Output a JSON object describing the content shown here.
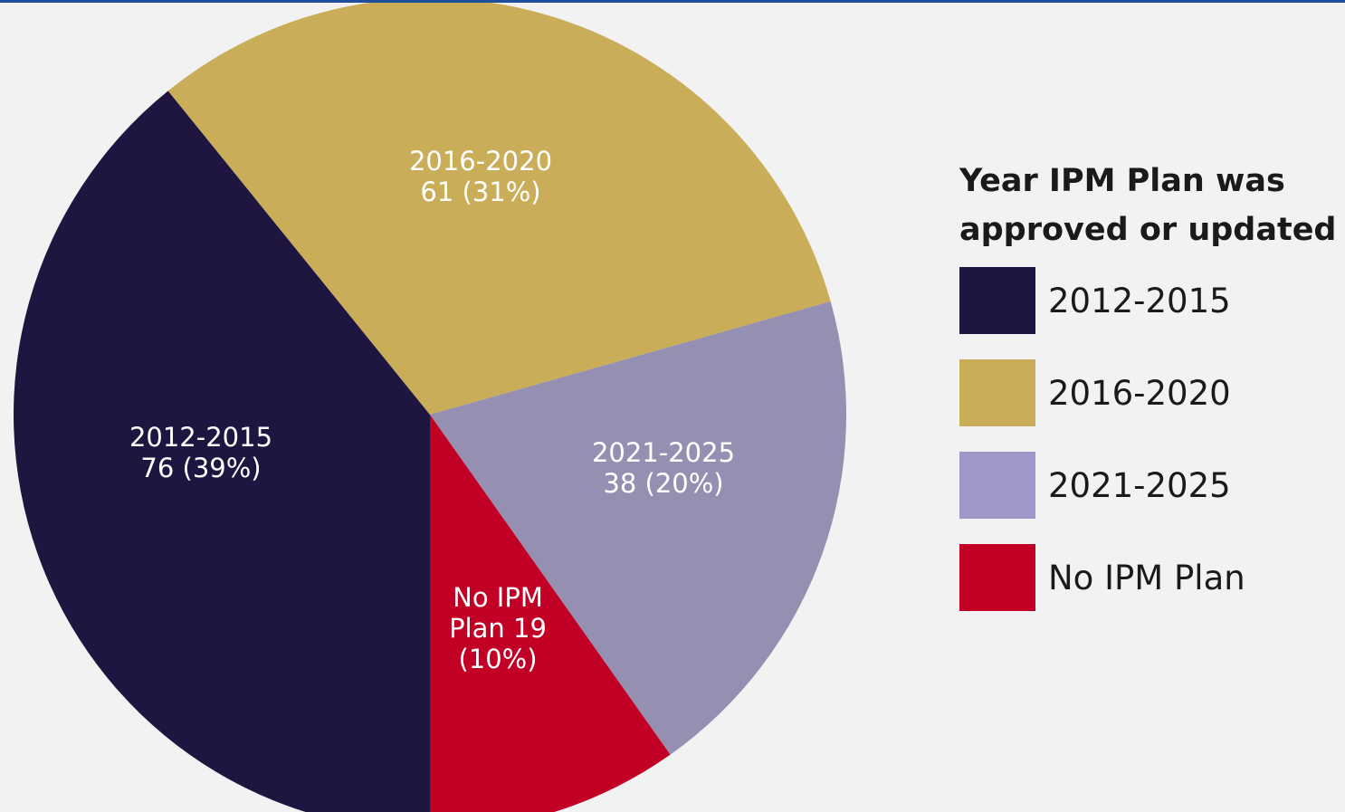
{
  "legend": {
    "title_line1": "Year IPM Plan was",
    "title_line2": "approved or updated"
  },
  "chart_data": {
    "type": "pie",
    "title": "",
    "legend_title": "Year IPM Plan was approved or updated",
    "legend_position": "right",
    "total": 194,
    "slices": [
      {
        "name": "2012-2015",
        "value": 76,
        "percent": 39,
        "color": "#1e1640",
        "label_color": "#ffffff",
        "label_lines": [
          "2012-2015",
          "76 (39%)"
        ]
      },
      {
        "name": "2016-2020",
        "value": 61,
        "percent": 31,
        "color": "#c9ad58",
        "label_color": "#ffffff",
        "label_lines": [
          "2016-2020",
          "61 (31%)"
        ]
      },
      {
        "name": "2021-2025",
        "value": 38,
        "percent": 20,
        "color": "#9590b1",
        "label_color": "#ffffff",
        "label_lines": [
          "2021-2025",
          "38 (20%)"
        ]
      },
      {
        "name": "No IPM Plan",
        "value": 19,
        "percent": 10,
        "color": "#c20025",
        "label_color": "#ffffff",
        "label_lines": [
          "No IPM",
          "Plan 19",
          "(10%)"
        ]
      }
    ],
    "legend_entries": [
      {
        "name": "2012-2015",
        "color": "#1e1640"
      },
      {
        "name": "2016-2020",
        "color": "#c9ad58"
      },
      {
        "name": "2021-2025",
        "color": "#9d98c9"
      },
      {
        "name": "No IPM Plan",
        "color": "#c20025"
      }
    ]
  }
}
